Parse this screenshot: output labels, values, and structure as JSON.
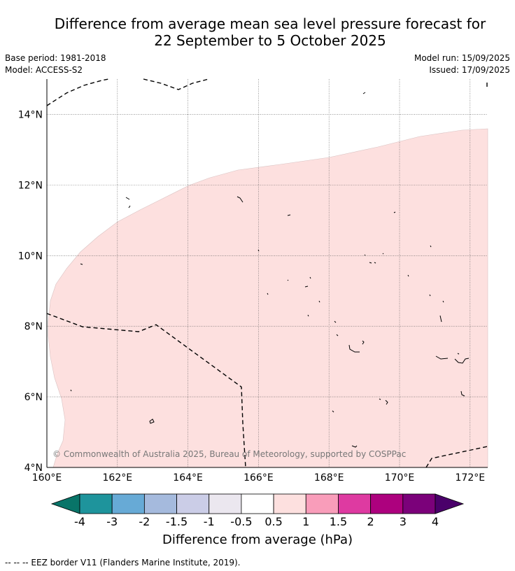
{
  "title": {
    "line1": "Difference from average mean sea level pressure forecast for",
    "line2": "22 September to 5 October 2025"
  },
  "meta": {
    "base_period": "Base period: 1981-2018",
    "model": "Model: ACCESS-S2",
    "model_run": "Model run: 15/09/2025",
    "issued": "Issued: 17/09/2025"
  },
  "map": {
    "lon_range": [
      160,
      172.5
    ],
    "lat_range": [
      4,
      15
    ],
    "lon_ticks": [
      "160°E",
      "162°E",
      "164°E",
      "166°E",
      "168°E",
      "170°E",
      "172°E"
    ],
    "lat_ticks": [
      "4°N",
      "6°N",
      "8°N",
      "10°N",
      "12°N",
      "14°N"
    ],
    "anomaly_region_color": "#fde0df",
    "eez_border_color": "#000000",
    "attribution": "© Commonwealth of Australia 2025, Bureau of Meteorology, supported by COSPPac"
  },
  "colorbar": {
    "title": "Difference from average (hPa)",
    "tick_labels": [
      "-4",
      "-3",
      "-2",
      "-1.5",
      "-1",
      "-0.5",
      "0.5",
      "1",
      "1.5",
      "2",
      "3",
      "4"
    ],
    "colors": [
      "#087468",
      "#1e949c",
      "#67aad6",
      "#a5badd",
      "#cbcde7",
      "#ebe7ef",
      "#ffffff",
      "#fde0df",
      "#f99dba",
      "#de3aa1",
      "#ad017e",
      "#7b017a",
      "#4a006a"
    ]
  },
  "footer": "--  --  -- EEZ border V11 (Flanders Marine Institute, 2019)."
}
